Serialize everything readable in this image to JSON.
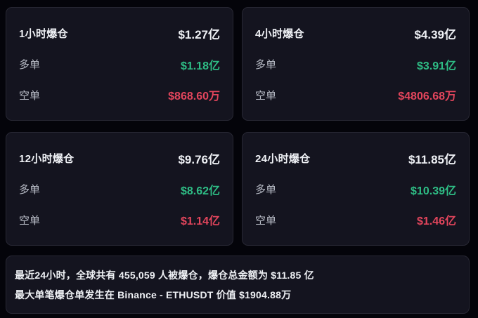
{
  "colors": {
    "background": "#04040a",
    "card_bg": "#14141f",
    "card_border": "#282834",
    "text_primary": "#eef0f4",
    "text_secondary": "#b9bdc7",
    "green": "#2ebd85",
    "red": "#e2455c"
  },
  "cards": [
    {
      "title": "1小时爆仓",
      "total": "$1.27亿",
      "long_label": "多单",
      "long_value": "$1.18亿",
      "short_label": "空单",
      "short_value": "$868.60万"
    },
    {
      "title": "4小时爆仓",
      "total": "$4.39亿",
      "long_label": "多单",
      "long_value": "$3.91亿",
      "short_label": "空单",
      "short_value": "$4806.68万"
    },
    {
      "title": "12小时爆仓",
      "total": "$9.76亿",
      "long_label": "多单",
      "long_value": "$8.62亿",
      "short_label": "空单",
      "short_value": "$1.14亿"
    },
    {
      "title": "24小时爆仓",
      "total": "$11.85亿",
      "long_label": "多单",
      "long_value": "$10.39亿",
      "short_label": "空单",
      "short_value": "$1.46亿"
    }
  ],
  "summary": {
    "line1": "最近24小时，全球共有 455,059 人被爆仓，爆仓总金额为 $11.85 亿",
    "line2": "最大单笔爆仓单发生在 Binance - ETHUSDT 价值 $1904.88万"
  }
}
